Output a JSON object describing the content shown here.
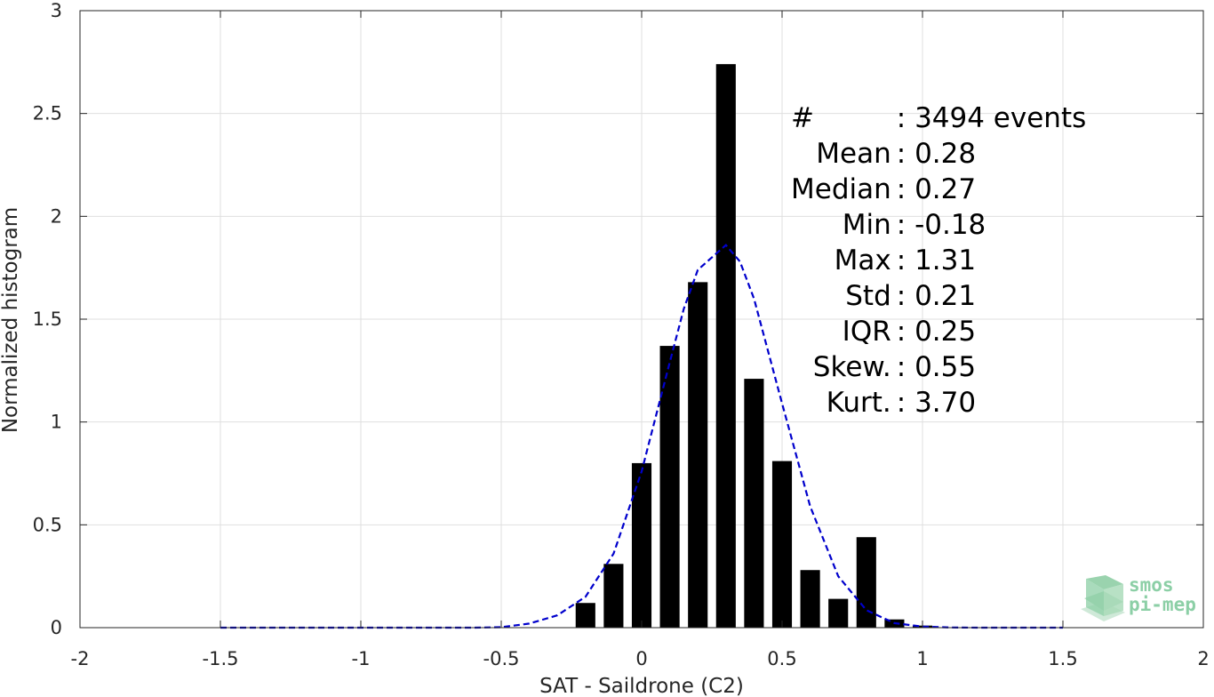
{
  "chart_data": {
    "type": "bar",
    "xlabel": "SAT - Saildrone (C2)",
    "ylabel": "Normalized histogram",
    "xlim": [
      -2,
      2
    ],
    "ylim": [
      0,
      3
    ],
    "grid": true,
    "xticks": [
      "-2",
      "-1.5",
      "-1",
      "-0.5",
      "0",
      "0.5",
      "1",
      "1.5",
      "2"
    ],
    "yticks": [
      "0",
      "0.5",
      "1",
      "1.5",
      "2",
      "2.5",
      "3"
    ],
    "bar_width": 0.07,
    "bars": [
      {
        "x": -0.2,
        "y": 0.12
      },
      {
        "x": -0.1,
        "y": 0.31
      },
      {
        "x": 0.0,
        "y": 0.8
      },
      {
        "x": 0.1,
        "y": 1.37
      },
      {
        "x": 0.2,
        "y": 1.68
      },
      {
        "x": 0.3,
        "y": 2.74
      },
      {
        "x": 0.4,
        "y": 1.21
      },
      {
        "x": 0.5,
        "y": 0.81
      },
      {
        "x": 0.6,
        "y": 0.28
      },
      {
        "x": 0.7,
        "y": 0.14
      },
      {
        "x": 0.8,
        "y": 0.44
      },
      {
        "x": 0.9,
        "y": 0.04
      },
      {
        "x": 1.0,
        "y": 0.01
      }
    ],
    "fit_curve": {
      "style": "dashed",
      "color": "#0000cc",
      "x": [
        -1.5,
        -1.0,
        -0.6,
        -0.5,
        -0.4,
        -0.3,
        -0.2,
        -0.1,
        0.0,
        0.1,
        0.15,
        0.2,
        0.25,
        0.3,
        0.35,
        0.4,
        0.5,
        0.6,
        0.7,
        0.8,
        0.9,
        1.0,
        1.1,
        1.2,
        1.3,
        1.5
      ],
      "y": [
        0.0,
        0.0,
        0.0,
        0.002,
        0.02,
        0.06,
        0.15,
        0.36,
        0.76,
        1.29,
        1.55,
        1.74,
        1.8,
        1.86,
        1.78,
        1.6,
        1.09,
        0.59,
        0.25,
        0.085,
        0.022,
        0.005,
        0.001,
        0.0,
        0.0,
        0.0
      ]
    },
    "stats": [
      {
        "label": "#  ",
        "value": ": 3494 events"
      },
      {
        "label": "Mean",
        "value": ": 0.28"
      },
      {
        "label": "Median",
        "value": ": 0.27"
      },
      {
        "label": "Min",
        "value": ": -0.18"
      },
      {
        "label": "Max",
        "value": ": 1.31"
      },
      {
        "label": "Std",
        "value": ": 0.21"
      },
      {
        "label": "IQR",
        "value": ": 0.25"
      },
      {
        "label": "Skew.",
        "value": ": 0.55"
      },
      {
        "label": "Kurt.",
        "value": ": 3.70"
      }
    ]
  },
  "logo": {
    "line1": "smos",
    "line2": "pi-mep"
  },
  "colors": {
    "bar": "#000000",
    "grid": "#dfdfdf",
    "axis": "#262626",
    "logo": "#8ccfa6"
  }
}
